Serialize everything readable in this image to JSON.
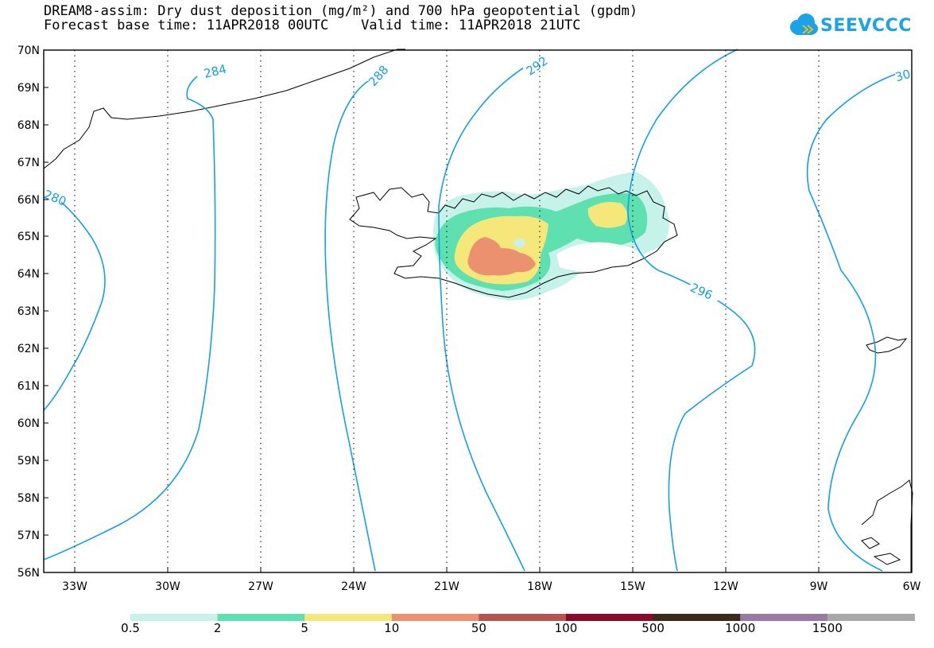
{
  "title_line1": "DREAM8-assim: Dry dust deposition (mg/m²) and 700 hPa geopotential (gpdm)",
  "title_line2": "Forecast base time: 11APR2018 00UTC    Valid time: 11APR2018 21UTC",
  "logo_text": "SEEVCCC",
  "lat_labels": [
    "70N",
    "69N",
    "68N",
    "67N",
    "66N",
    "65N",
    "64N",
    "63N",
    "62N",
    "61N",
    "60N",
    "59N",
    "58N",
    "57N",
    "56N"
  ],
  "lon_labels": [
    "33W",
    "30W",
    "27W",
    "24W",
    "21W",
    "18W",
    "15W",
    "12W",
    "9W",
    "6W"
  ],
  "contour_labels": [
    "284",
    "288",
    "292",
    "296",
    "280",
    "30"
  ],
  "colorbar": {
    "colors": [
      "#c6f2ea",
      "#5ee0b0",
      "#f5e77a",
      "#eb9170",
      "#b5564e",
      "#8a0a2a",
      "#3d2a1d",
      "#9a7aa5",
      "#a8a8a8"
    ],
    "labels": [
      "0.5",
      "2",
      "5",
      "10",
      "50",
      "100",
      "500",
      "1000",
      "1500"
    ]
  }
}
